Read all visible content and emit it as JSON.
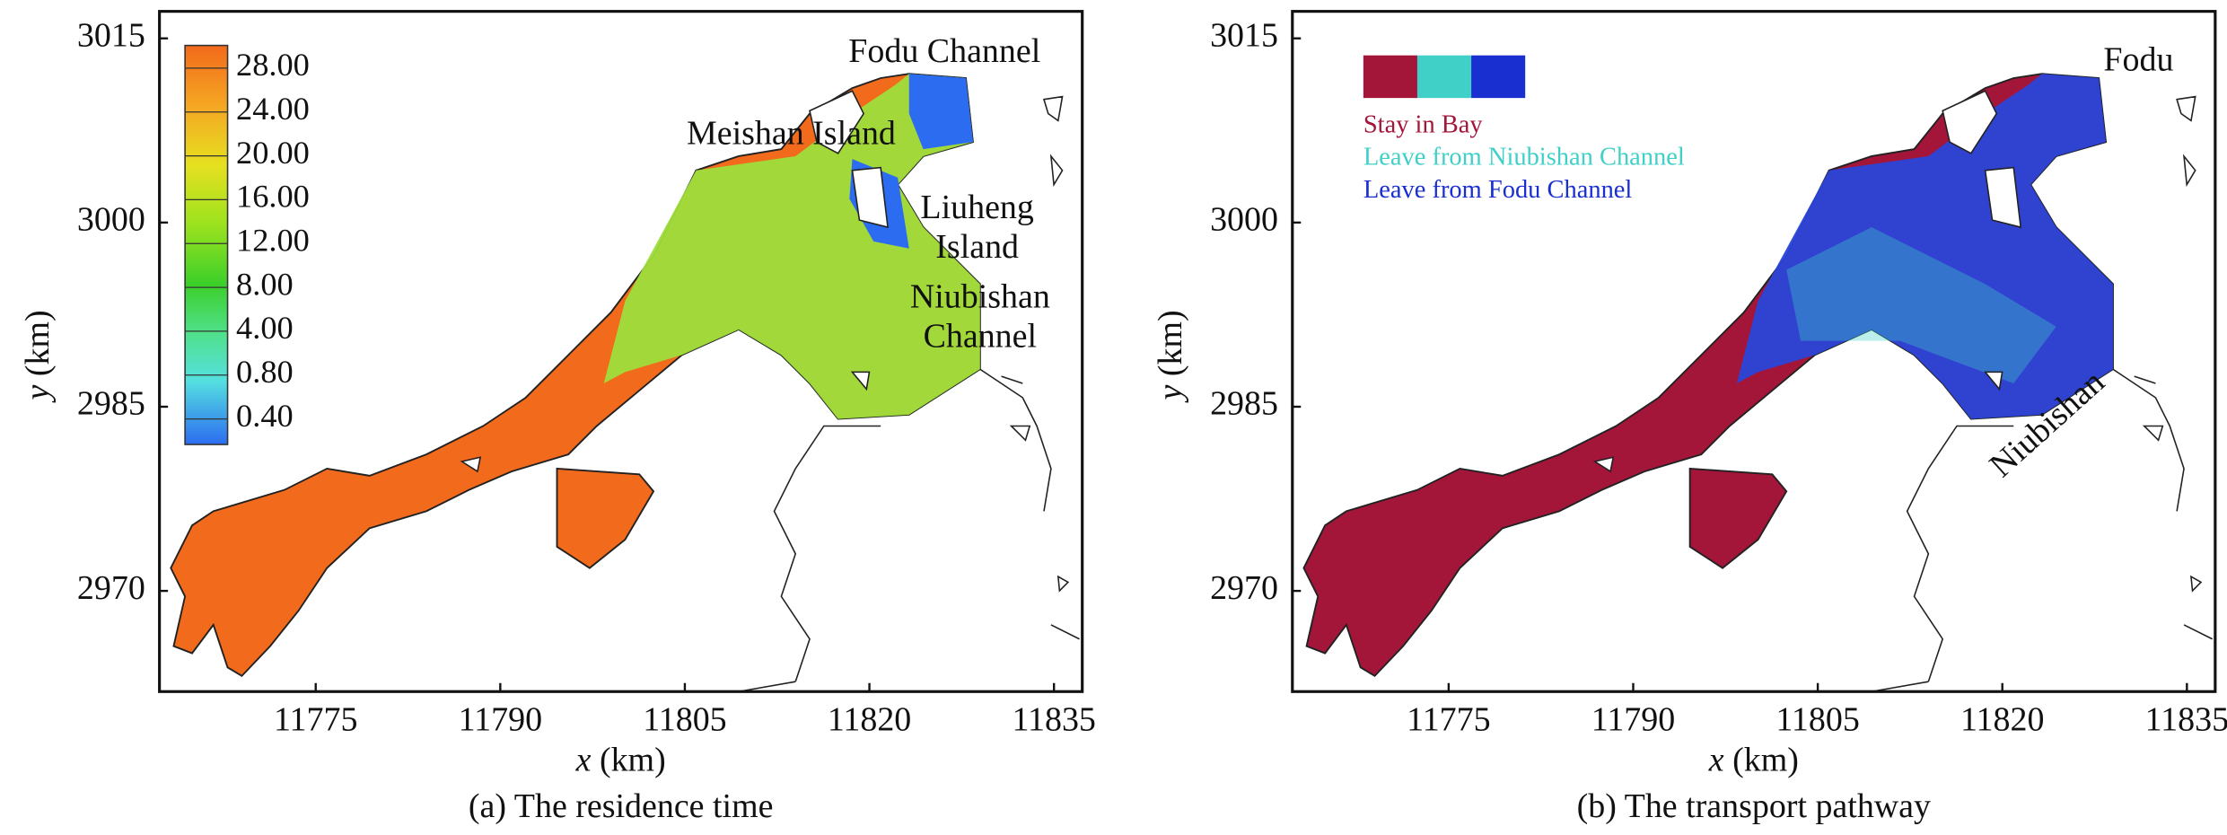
{
  "panels": [
    {
      "caption": "(a) The residence time",
      "x_label": {
        "var": "x",
        "unit": "(km)"
      },
      "y_label": {
        "var": "y",
        "unit": "(km)"
      },
      "xlim": [
        11762.3,
        11837.3
      ],
      "ylim": [
        2961.8,
        3017.2
      ],
      "xticks": [
        11775,
        11790,
        11805,
        11820,
        11835
      ],
      "yticks": [
        2970,
        2985,
        3000,
        3015
      ],
      "colorbar_labels": [
        "28.00",
        "24.00",
        "20.00",
        "16.00",
        "12.00",
        "8.00",
        "4.00",
        "0.80",
        "0.40"
      ],
      "annotations": [
        [
          "Fodu Channel"
        ],
        [
          "Meishan Island"
        ],
        [
          "Liuheng",
          "Island"
        ],
        [
          "Niubishan",
          "Channel"
        ]
      ]
    },
    {
      "caption": "(b) The transport pathway",
      "x_label": {
        "var": "x",
        "unit": "(km)"
      },
      "y_label": {
        "var": "y",
        "unit": "(km)"
      },
      "xlim": [
        11762.3,
        11837.3
      ],
      "ylim": [
        2961.8,
        3017.2
      ],
      "xticks": [
        11775,
        11790,
        11805,
        11820,
        11835
      ],
      "yticks": [
        2970,
        2985,
        3000,
        3015
      ],
      "legend": [
        {
          "name": "Stay in Bay",
          "color": "#a3163a"
        },
        {
          "name": "Leave from Niubishan Channel",
          "color": "#40d0c8"
        },
        {
          "name": "Leave from Fodu Channel",
          "color": "#1a2fd0"
        }
      ],
      "annotations": [
        [
          "Fodu"
        ],
        [
          "Niubishan"
        ]
      ]
    }
  ]
}
